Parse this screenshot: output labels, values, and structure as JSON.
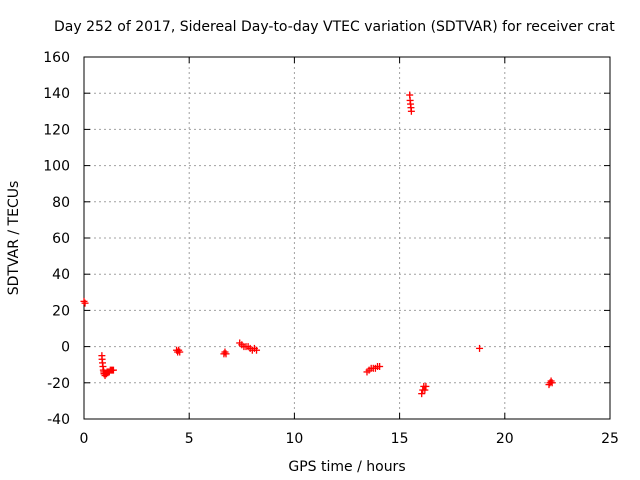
{
  "chart_data": {
    "type": "scatter",
    "title": "Day 252 of 2017, Sidereal Day-to-day VTEC variation (SDTVAR) for receiver crat",
    "xlabel": "GPS time / hours",
    "ylabel": "SDTVAR / TECUs",
    "xlim": [
      0,
      25
    ],
    "ylim": [
      -40,
      160
    ],
    "xticks": [
      0,
      5,
      10,
      15,
      20,
      25
    ],
    "yticks": [
      -40,
      -20,
      0,
      20,
      40,
      60,
      80,
      100,
      120,
      140,
      160
    ],
    "grid": true,
    "legend": "none",
    "marker": "plus",
    "point_color": "#ff0000",
    "series": [
      {
        "x": [
          0.0,
          0.05,
          0.85,
          0.86,
          0.88,
          0.9,
          0.92,
          0.94,
          0.95,
          0.97,
          1.0,
          1.03,
          1.07,
          1.1,
          1.15,
          1.2,
          1.25,
          1.3,
          1.35,
          1.4,
          4.4,
          4.45,
          4.5,
          4.55,
          6.65,
          6.7,
          6.75,
          7.4,
          7.5,
          7.6,
          7.7,
          7.8,
          7.9,
          8.0,
          8.1,
          8.2,
          13.45,
          13.55,
          13.65,
          13.75,
          13.85,
          13.95,
          14.05,
          15.48,
          15.5,
          15.52,
          15.54,
          15.56,
          16.05,
          16.1,
          16.15,
          16.2,
          16.25,
          18.8,
          22.1,
          22.15,
          22.2,
          22.25
        ],
        "y": [
          25,
          24,
          -5,
          -7,
          -9,
          -11,
          -13,
          -14,
          -15,
          -15,
          -16,
          -15,
          -15,
          -14,
          -14,
          -14,
          -13,
          -13,
          -13,
          -13,
          -2,
          -3,
          -2,
          -3,
          -4,
          -3,
          -4,
          2,
          1,
          0,
          0,
          0,
          -1,
          -2,
          -1,
          -2,
          -14,
          -13,
          -12,
          -12,
          -12,
          -11,
          -11,
          139,
          136,
          134,
          132,
          130,
          -26,
          -24,
          -22,
          -24,
          -22,
          -1,
          -21,
          -20,
          -19,
          -20
        ]
      }
    ]
  }
}
